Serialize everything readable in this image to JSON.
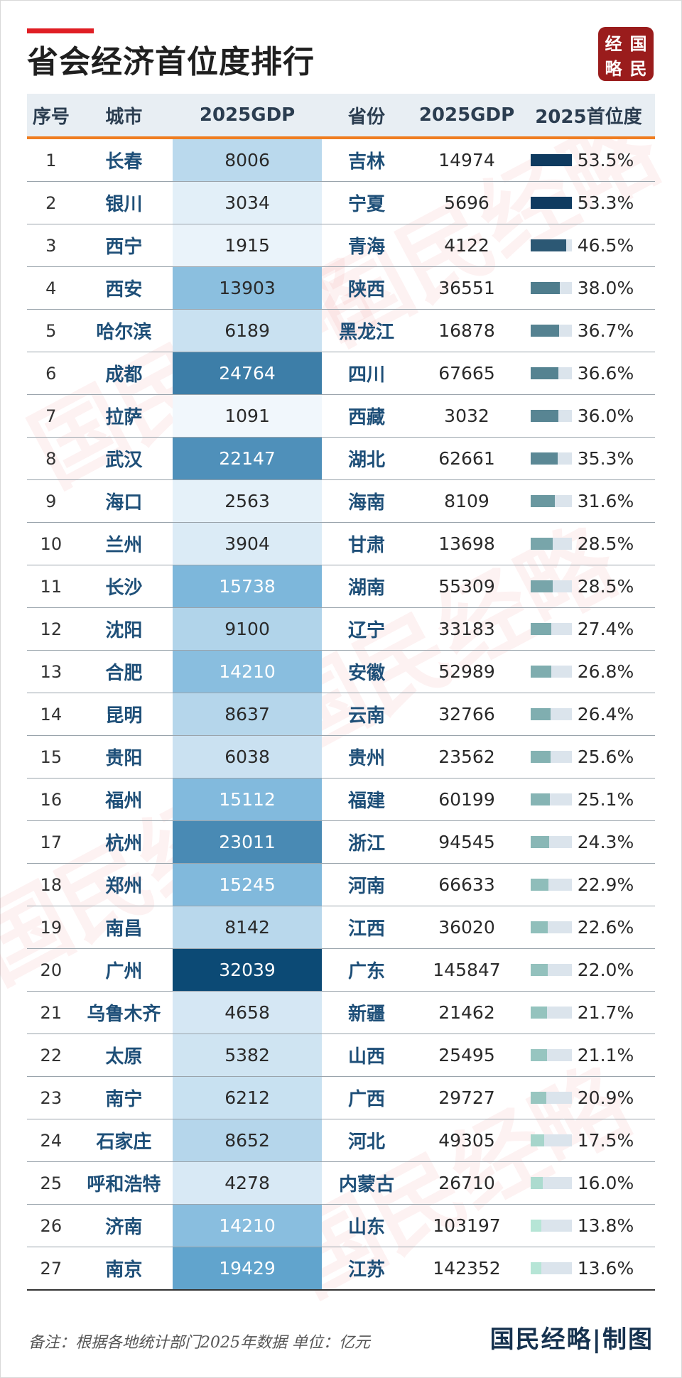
{
  "title": "省会经济首位度排行",
  "seal": [
    "经",
    "国",
    "略",
    "民"
  ],
  "watermark": "国民经略",
  "footer": {
    "note": "备注：根据各地统计部门2025年数据 单位：亿元",
    "brand": "国民经略|制图"
  },
  "colors": {
    "accent_red": "#e01e24",
    "header_underline": "#ef7d20",
    "city_text": "#1e4f78",
    "seal_bg": "#9a1c1c"
  },
  "chart_data": {
    "type": "table",
    "title": "省会经济首位度排行",
    "columns": [
      "序号",
      "城市",
      "2025GDP",
      "省份",
      "2025GDP",
      "2025首位度"
    ],
    "unit": "亿元",
    "rows": [
      {
        "rank": "1",
        "city": "长春",
        "city_gdp": 8006,
        "province": "吉林",
        "province_gdp": 14974,
        "primacy": "53.5%"
      },
      {
        "rank": "2",
        "city": "银川",
        "city_gdp": 3034,
        "province": "宁夏",
        "province_gdp": 5696,
        "primacy": "53.3%"
      },
      {
        "rank": "3",
        "city": "西宁",
        "city_gdp": 1915,
        "province": "青海",
        "province_gdp": 4122,
        "primacy": "46.5%"
      },
      {
        "rank": "4",
        "city": "西安",
        "city_gdp": 13903,
        "province": "陕西",
        "province_gdp": 36551,
        "primacy": "38.0%"
      },
      {
        "rank": "5",
        "city": "哈尔滨",
        "city_gdp": 6189,
        "province": "黑龙江",
        "province_gdp": 16878,
        "primacy": "36.7%"
      },
      {
        "rank": "6",
        "city": "成都",
        "city_gdp": 24764,
        "province": "四川",
        "province_gdp": 67665,
        "primacy": "36.6%"
      },
      {
        "rank": "7",
        "city": "拉萨",
        "city_gdp": 1091,
        "province": "西藏",
        "province_gdp": 3032,
        "primacy": "36.0%"
      },
      {
        "rank": "8",
        "city": "武汉",
        "city_gdp": 22147,
        "province": "湖北",
        "province_gdp": 62661,
        "primacy": "35.3%"
      },
      {
        "rank": "9",
        "city": "海口",
        "city_gdp": 2563,
        "province": "海南",
        "province_gdp": 8109,
        "primacy": "31.6%"
      },
      {
        "rank": "10",
        "city": "兰州",
        "city_gdp": 3904,
        "province": "甘肃",
        "province_gdp": 13698,
        "primacy": "28.5%"
      },
      {
        "rank": "11",
        "city": "长沙",
        "city_gdp": 15738,
        "province": "湖南",
        "province_gdp": 55309,
        "primacy": "28.5%"
      },
      {
        "rank": "12",
        "city": "沈阳",
        "city_gdp": 9100,
        "province": "辽宁",
        "province_gdp": 33183,
        "primacy": "27.4%"
      },
      {
        "rank": "13",
        "city": "合肥",
        "city_gdp": 14210,
        "province": "安徽",
        "province_gdp": 52989,
        "primacy": "26.8%"
      },
      {
        "rank": "14",
        "city": "昆明",
        "city_gdp": 8637,
        "province": "云南",
        "province_gdp": 32766,
        "primacy": "26.4%"
      },
      {
        "rank": "15",
        "city": "贵阳",
        "city_gdp": 6038,
        "province": "贵州",
        "province_gdp": 23562,
        "primacy": "25.6%"
      },
      {
        "rank": "16",
        "city": "福州",
        "city_gdp": 15112,
        "province": "福建",
        "province_gdp": 60199,
        "primacy": "25.1%"
      },
      {
        "rank": "17",
        "city": "杭州",
        "city_gdp": 23011,
        "province": "浙江",
        "province_gdp": 94545,
        "primacy": "24.3%"
      },
      {
        "rank": "18",
        "city": "郑州",
        "city_gdp": 15245,
        "province": "河南",
        "province_gdp": 66633,
        "primacy": "22.9%"
      },
      {
        "rank": "19",
        "city": "南昌",
        "city_gdp": 8142,
        "province": "江西",
        "province_gdp": 36020,
        "primacy": "22.6%"
      },
      {
        "rank": "20",
        "city": "广州",
        "city_gdp": 32039,
        "province": "广东",
        "province_gdp": 145847,
        "primacy": "22.0%"
      },
      {
        "rank": "21",
        "city": "乌鲁木齐",
        "city_gdp": 4658,
        "province": "新疆",
        "province_gdp": 21462,
        "primacy": "21.7%"
      },
      {
        "rank": "22",
        "city": "太原",
        "city_gdp": 5382,
        "province": "山西",
        "province_gdp": 25495,
        "primacy": "21.1%"
      },
      {
        "rank": "23",
        "city": "南宁",
        "city_gdp": 6212,
        "province": "广西",
        "province_gdp": 29727,
        "primacy": "20.9%"
      },
      {
        "rank": "24",
        "city": "石家庄",
        "city_gdp": 8652,
        "province": "河北",
        "province_gdp": 49305,
        "primacy": "17.5%"
      },
      {
        "rank": "25",
        "city": "呼和浩特",
        "city_gdp": 4278,
        "province": "内蒙古",
        "province_gdp": 26710,
        "primacy": "16.0%"
      },
      {
        "rank": "26",
        "city": "济南",
        "city_gdp": 14210,
        "province": "山东",
        "province_gdp": 103197,
        "primacy": "13.8%"
      },
      {
        "rank": "27",
        "city": "南京",
        "city_gdp": 19429,
        "province": "江苏",
        "province_gdp": 142352,
        "primacy": "13.6%"
      }
    ]
  }
}
